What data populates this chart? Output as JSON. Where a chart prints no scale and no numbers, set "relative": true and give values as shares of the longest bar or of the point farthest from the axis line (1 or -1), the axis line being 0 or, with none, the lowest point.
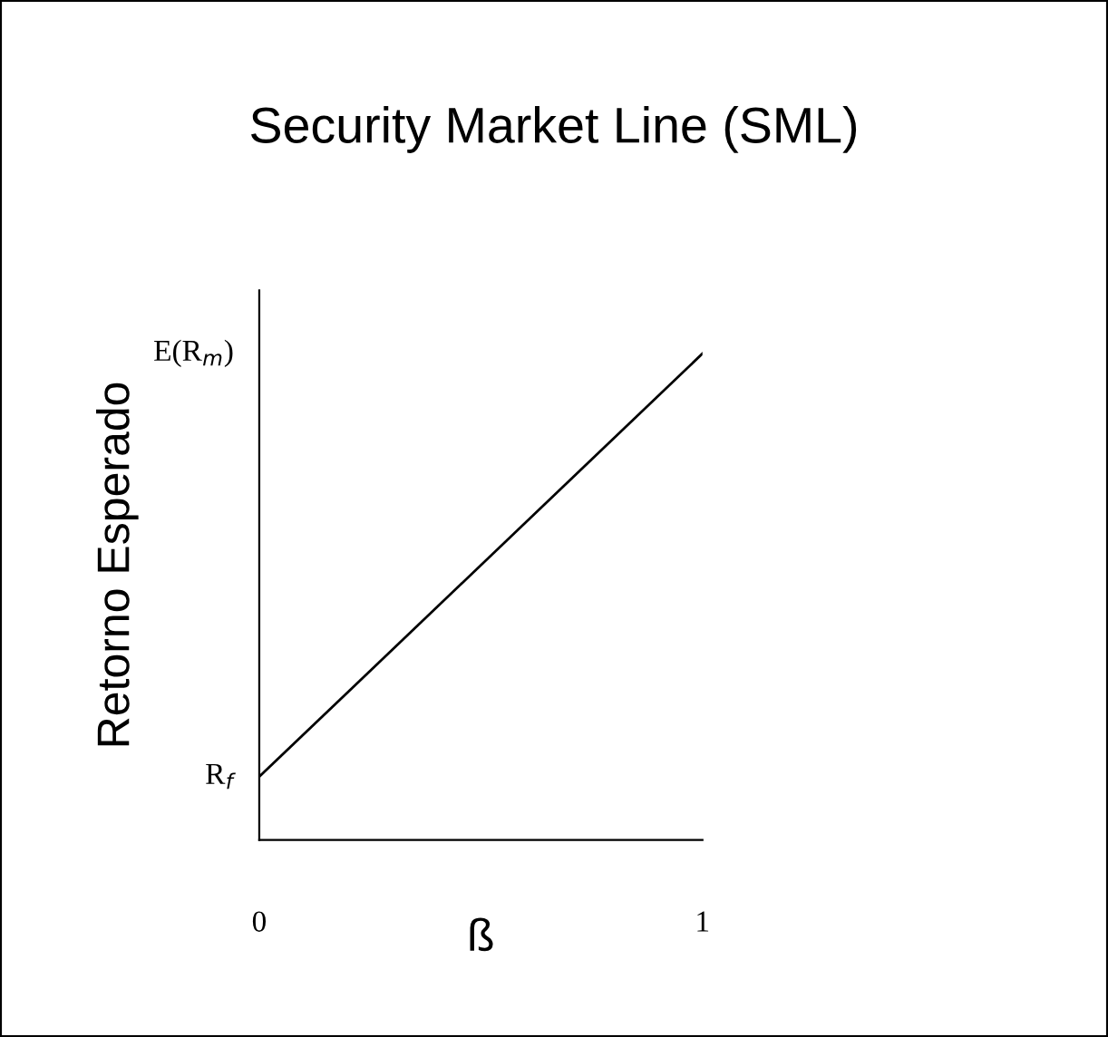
{
  "chart_data": {
    "type": "line",
    "title": "Security Market Line (SML)",
    "xlabel": "ß",
    "ylabel": "Retorno Esperado",
    "x": [
      0,
      1
    ],
    "values": [
      0.13,
      1
    ],
    "color": "#000000",
    "relative": true,
    "xlim": [
      0,
      1.0
    ],
    "xticks": [
      0,
      1
    ],
    "annotations": [
      {
        "text": "R$_{f}$",
        "x": 0,
        "y": 0.13
      },
      "E(R$_{m}$)"
    ],
    "grid": false,
    "legend": false,
    "marker": "none",
    "line_style": "solid"
  }
}
